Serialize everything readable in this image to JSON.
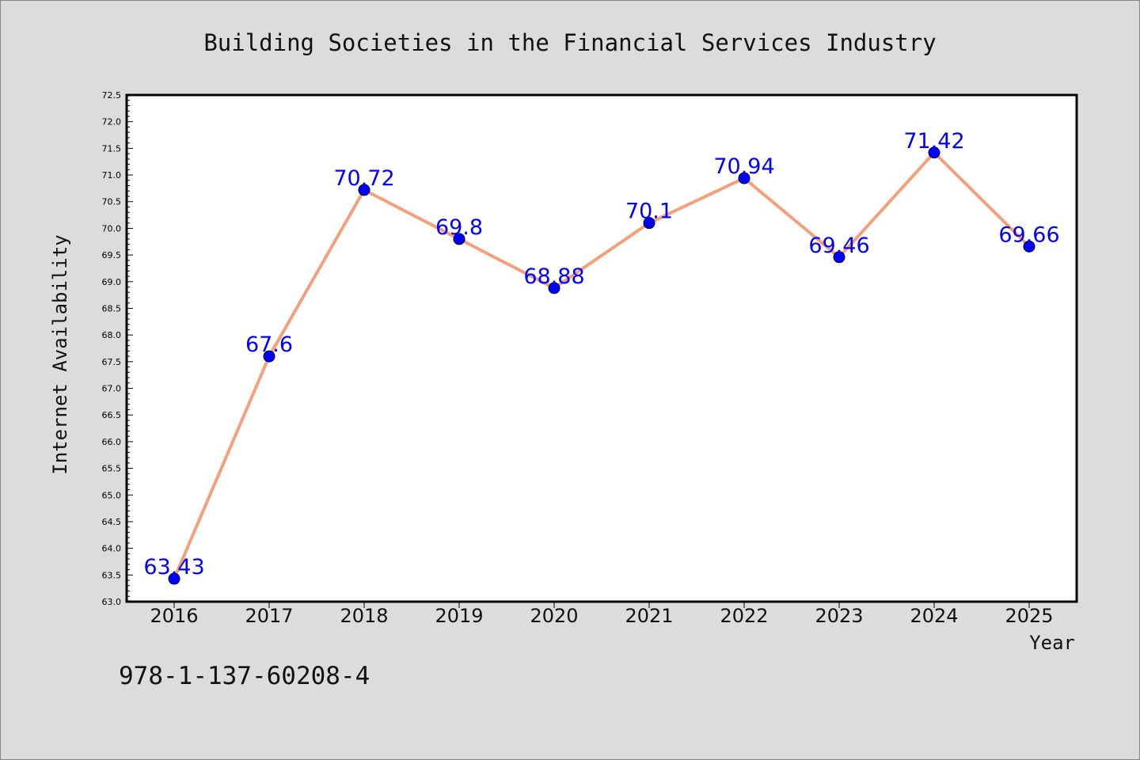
{
  "chart_data": {
    "type": "line",
    "title": "Building Societies in the Financial Services Industry",
    "xlabel": "Year",
    "ylabel": "Internet Availability",
    "footer_text": "978-1-137-60208-4",
    "x": [
      "2016",
      "2017",
      "2018",
      "2019",
      "2020",
      "2021",
      "2022",
      "2023",
      "2024",
      "2025"
    ],
    "series": [
      {
        "values": [
          63.43,
          67.6,
          70.72,
          69.8,
          68.88,
          70.1,
          70.94,
          69.46,
          71.42,
          69.66
        ],
        "labels": [
          "63.43",
          "67.6",
          "70.72",
          "69.8",
          "68.88",
          "70.1",
          "70.94",
          "69.46",
          "71.42",
          "69.66"
        ],
        "line_color": "#f4a07c",
        "marker_color": "#0000ff"
      }
    ],
    "ylim": [
      63.0,
      72.5
    ],
    "yticks": [
      "63.0",
      "63.5",
      "64.0",
      "64.5",
      "65.0",
      "65.5",
      "66.0",
      "66.5",
      "67.0",
      "67.5",
      "68.0",
      "68.5",
      "69.0",
      "69.5",
      "70.0",
      "70.5",
      "71.0",
      "71.5",
      "72.0",
      "72.5"
    ],
    "grid": false,
    "label_color": "#0000ff"
  }
}
